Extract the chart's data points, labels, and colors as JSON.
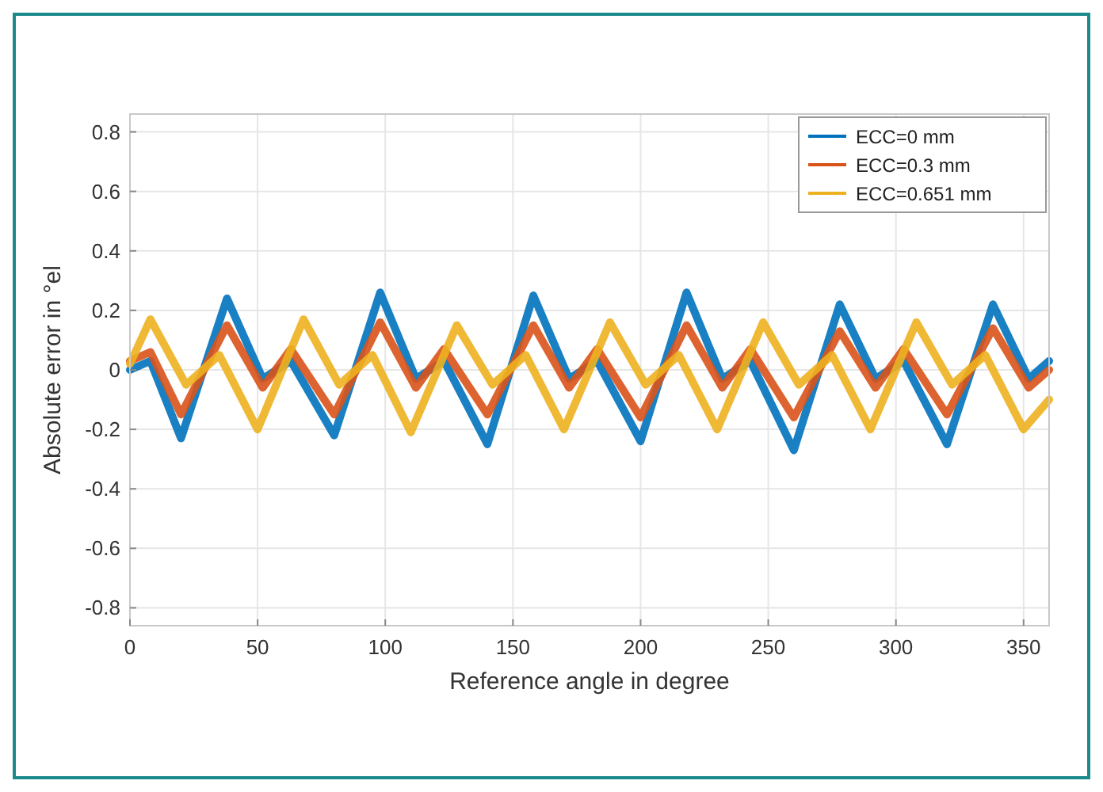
{
  "chart_data": {
    "type": "line",
    "xlabel": "Reference angle in degree",
    "ylabel": "Absolute error in °el",
    "xlim": [
      0,
      360
    ],
    "xticks": [
      0,
      50,
      100,
      150,
      200,
      250,
      300,
      350
    ],
    "ylim": [
      -0.86,
      0.86
    ],
    "yticks": [
      -0.8,
      -0.6,
      -0.4,
      -0.2,
      0,
      0.2,
      0.4,
      0.6,
      0.8
    ],
    "grid": true,
    "legend": "top right",
    "marker": "none",
    "line_style": "solid",
    "series": [
      {
        "name": "ECC=0 mm",
        "color": "#0072bd",
        "x": [
          0,
          8,
          20,
          38,
          52,
          63,
          80,
          98,
          112,
          123,
          140,
          158,
          172,
          183,
          200,
          218,
          232,
          243,
          260,
          278,
          292,
          303,
          320,
          338,
          352,
          360
        ],
        "values": [
          0.0,
          0.03,
          -0.23,
          0.24,
          -0.03,
          0.03,
          -0.22,
          0.26,
          -0.03,
          0.03,
          -0.25,
          0.25,
          -0.03,
          0.03,
          -0.24,
          0.26,
          -0.03,
          0.03,
          -0.27,
          0.22,
          -0.03,
          0.03,
          -0.25,
          0.22,
          -0.03,
          0.03
        ]
      },
      {
        "name": "ECC=0.3 mm",
        "color": "#d95319",
        "x": [
          0,
          8,
          20,
          38,
          52,
          63,
          80,
          98,
          112,
          123,
          140,
          158,
          172,
          183,
          200,
          218,
          232,
          243,
          260,
          278,
          292,
          303,
          320,
          338,
          352,
          360
        ],
        "values": [
          0.03,
          0.06,
          -0.15,
          0.15,
          -0.06,
          0.07,
          -0.15,
          0.16,
          -0.06,
          0.07,
          -0.15,
          0.15,
          -0.06,
          0.07,
          -0.16,
          0.15,
          -0.06,
          0.07,
          -0.16,
          0.13,
          -0.06,
          0.07,
          -0.15,
          0.14,
          -0.06,
          0.0
        ]
      },
      {
        "name": "ECC=0.651 mm",
        "color": "#edb120",
        "x": [
          0,
          8,
          22,
          35,
          50,
          68,
          82,
          95,
          110,
          128,
          142,
          155,
          170,
          188,
          202,
          215,
          230,
          248,
          262,
          275,
          290,
          308,
          322,
          335,
          350,
          360
        ],
        "values": [
          0.02,
          0.17,
          -0.05,
          0.05,
          -0.2,
          0.17,
          -0.05,
          0.05,
          -0.21,
          0.15,
          -0.05,
          0.05,
          -0.2,
          0.16,
          -0.05,
          0.05,
          -0.2,
          0.16,
          -0.05,
          0.05,
          -0.2,
          0.16,
          -0.05,
          0.05,
          -0.2,
          -0.1
        ]
      }
    ]
  }
}
